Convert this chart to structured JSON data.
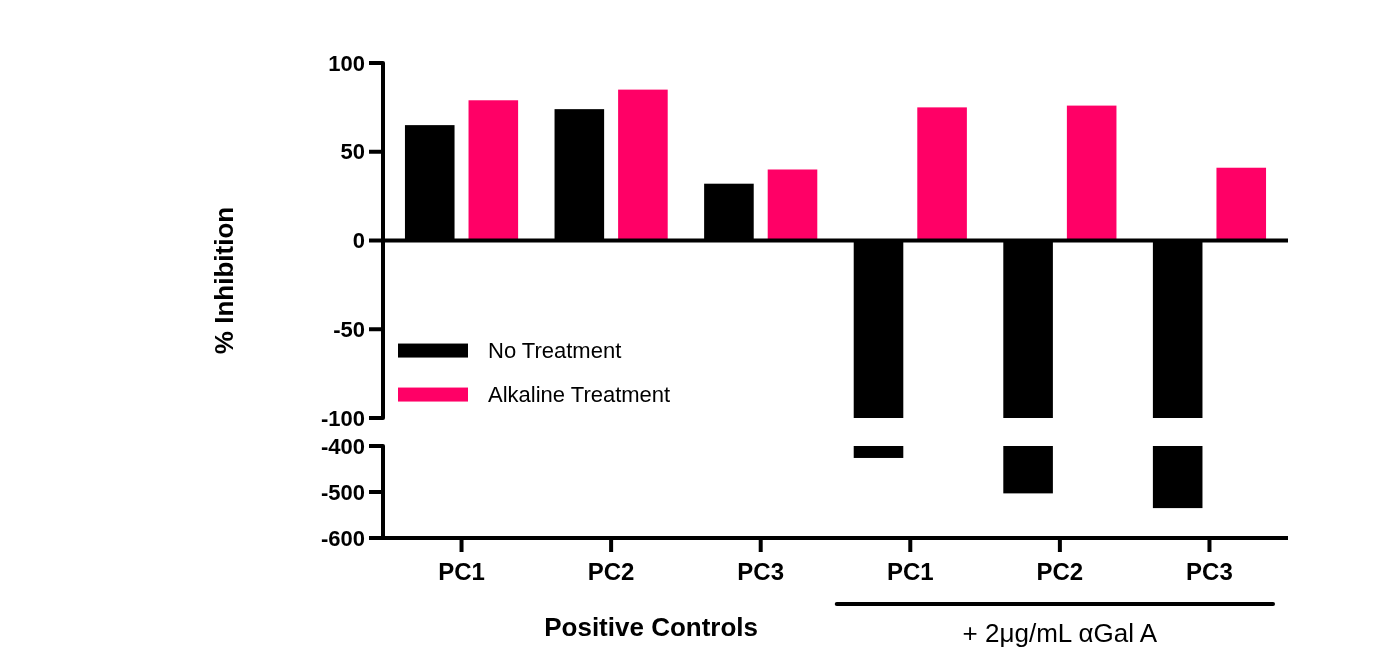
{
  "chart_data": [
    {
      "type": "bar",
      "ylabel": "% Inhibition",
      "categories": [
        "PC1",
        "PC2",
        "PC3",
        "PC1",
        "PC2",
        "PC3"
      ],
      "series": [
        {
          "name": "No Treatment",
          "color": "#000000",
          "values": [
            65,
            74,
            32,
            -100,
            -100,
            -100
          ]
        },
        {
          "name": "Alkaline Treatment",
          "color": "#ff0066",
          "values": [
            79,
            85,
            40,
            75,
            76,
            41
          ]
        }
      ],
      "ylim": [
        -100,
        100
      ],
      "yticks": [
        100,
        50,
        0,
        -50,
        -100
      ],
      "ref_lines": [
        {
          "axis": "y",
          "value": 0,
          "color": "#000000"
        }
      ],
      "legend": "left",
      "grid": false
    },
    {
      "type": "bar",
      "categories": [
        null,
        null,
        null,
        null,
        null,
        null
      ],
      "series": [
        {
          "color": "#000000",
          "values": [
            null,
            null,
            null,
            -426,
            -503,
            -535
          ]
        }
      ],
      "ylim": [
        -600,
        -400
      ],
      "yticks": [
        -400,
        -500,
        -600
      ],
      "annotations": [
        "Positive Controls",
        "+ 2μg/mL αGal A"
      ]
    }
  ]
}
